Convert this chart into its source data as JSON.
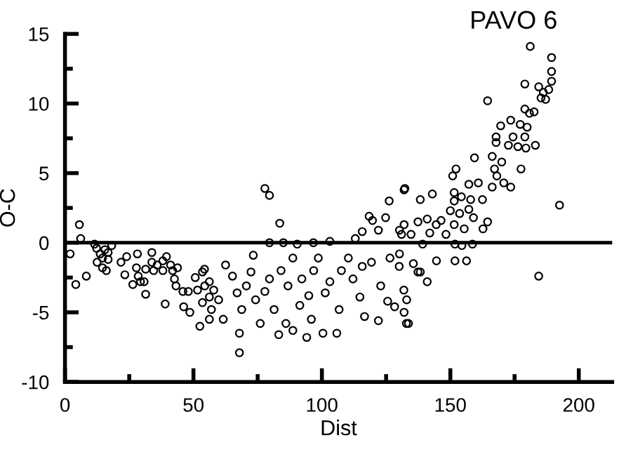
{
  "chart_data": {
    "type": "scatter",
    "title": "PAVO 6",
    "xlabel": "Dist",
    "ylabel": "O-C",
    "grid": false,
    "legend": false,
    "xlim": [
      0,
      213
    ],
    "ylim": [
      -10,
      15
    ],
    "xticks": [
      0,
      {
        "value": 25,
        "label": null
      },
      50,
      {
        "value": 75,
        "label": null
      },
      100,
      {
        "value": 125,
        "label": null
      },
      150,
      {
        "value": 175,
        "label": null
      },
      200
    ],
    "yticks": [
      -10,
      {
        "value": -7.5,
        "label": null
      },
      -5,
      {
        "value": -2.5,
        "label": null
      },
      0,
      {
        "value": 2.5,
        "label": null
      },
      5,
      {
        "value": 7.5,
        "label": null
      },
      10,
      {
        "value": 12.5,
        "label": null
      },
      15
    ],
    "series": [
      {
        "color": "#000000",
        "marker": "circle",
        "x": [
          5.6,
          6.1,
          2,
          4.2,
          8.3,
          11.5,
          12.3,
          13.7,
          14.6,
          12.5,
          15.5,
          16.8,
          18.2,
          14.6,
          16.1,
          16.8,
          21.8,
          24,
          23.3,
          26.4,
          28.2,
          27.8,
          28.5,
          29.4,
          30.8,
          31.4,
          31.4,
          33.8,
          33.8,
          34.5,
          35.9,
          38.1,
          38.1,
          39.5,
          39,
          41.1,
          41.9,
          42.6,
          43.8,
          43.2,
          45.9,
          46.2,
          48,
          48.6,
          50.7,
          51.6,
          52.5,
          53.5,
          53.5,
          54.4,
          56.2,
          56.2,
          77.8,
          79.6,
          83.6,
          79.6,
          85,
          90.4,
          96.7,
          103.1,
          113,
          115.7,
          118.4,
          119.7,
          122,
          124.8,
          126.2,
          132.3,
          131,
          67.9,
          54.3,
          56.2,
          57.9,
          59.8,
          57,
          61.6,
          62.5,
          65.2,
          67,
          68.8,
          67.9,
          70.6,
          72.4,
          74.2,
          76,
          73.3,
          77.8,
          79.6,
          81.4,
          83.2,
          84.1,
          86,
          86.8,
          88.7,
          88.7,
          91.4,
          92.2,
          94.1,
          94.9,
          95.9,
          96.8,
          98.6,
          100.4,
          101.3,
          103.1,
          105.8,
          106.7,
          107.6,
          110.3,
          112.1,
          114.8,
          116.6,
          115.7,
          119.3,
          122,
          122.9,
          125.6,
          126.5,
          128.3,
          130.1,
          131.9,
          132.9,
          181.1,
          189.4,
          189.4,
          189.4,
          184.4,
          186.2,
          188.3,
          185.3,
          187.1,
          179,
          164.5,
          179,
          180.8,
          182.6,
          173.5,
          169.6,
          177.2,
          179.9,
          174.4,
          179,
          167.8,
          167.8,
          172.6,
          176.3,
          179.4,
          183.1,
          159.4,
          166.3,
          170,
          177.5,
          167.2,
          152.2,
          150.9,
          168.1,
          170.8,
          173.5,
          166.3,
          160.9,
          157.2,
          151.5,
          132,
          138.3,
          143,
          151.5,
          154.3,
          157.9,
          162.5,
          192.5,
          150,
          153.6,
          157.2,
          159,
          146.4,
          141,
          137.4,
          144.5,
          151.5,
          164.5,
          162.7,
          155.4,
          132,
          130.2,
          134.7,
          142,
          148.3,
          151.8,
          154.5,
          158.6,
          139.2,
          144.6,
          151.8,
          156.3,
          130.2,
          135.6,
          137.4,
          184.4,
          132,
          133.7,
          133,
          141,
          138.3
        ],
        "values": [
          1.3,
          0.3,
          -0.8,
          -3.0,
          -2.4,
          -0.1,
          -0.4,
          -0.8,
          -1.1,
          -1.4,
          -0.5,
          -0.7,
          -0.2,
          -1.8,
          -2.0,
          -1.2,
          -1.4,
          -1.0,
          -2.3,
          -3.0,
          -0.8,
          -1.8,
          -2.4,
          -2.8,
          -2.8,
          -1.9,
          -3.7,
          -0.7,
          -1.4,
          -2.0,
          -1.6,
          -1.3,
          -2.0,
          -1.0,
          -4.4,
          -1.6,
          -2.0,
          -2.6,
          -1.8,
          -3.1,
          -3.5,
          -4.6,
          -3.5,
          -5.0,
          -2.5,
          -3.4,
          -6.0,
          -2.1,
          -4.3,
          -3.1,
          -5.5,
          -3.9,
          3.9,
          3.4,
          1.4,
          0,
          0,
          -0.1,
          0,
          0.1,
          0.3,
          0.8,
          1.9,
          1.6,
          0.9,
          1.8,
          3.0,
          3.9,
          0.6,
          -7.9,
          -1.9,
          -2.8,
          -3.4,
          -4.1,
          -4.8,
          -5.5,
          -1.6,
          -2.4,
          -3.6,
          -4.8,
          -6.5,
          -3.1,
          -2.1,
          -4.1,
          -5.8,
          -0.9,
          -3.5,
          -2.6,
          -4.8,
          -6.6,
          -2.0,
          -5.8,
          -3.1,
          -1.1,
          -6.3,
          -4.5,
          -2.6,
          -6.8,
          -3.8,
          -5.5,
          -2.0,
          -1.1,
          -6.5,
          -3.6,
          -2.8,
          -6.5,
          -4.8,
          -2.0,
          -1.1,
          -2.6,
          -3.9,
          -5.3,
          -1.7,
          -1.4,
          -5.6,
          -3.1,
          -4.2,
          -1.1,
          -4.6,
          -1.7,
          -3.4,
          -5.8,
          14.1,
          13.3,
          12.3,
          11.6,
          11.2,
          10.8,
          11.0,
          10.4,
          10.3,
          11.4,
          10.2,
          9.6,
          9.3,
          9.4,
          8.8,
          8.4,
          8.5,
          8.3,
          7.6,
          7.6,
          7.6,
          7.2,
          7.0,
          6.9,
          6.8,
          7.0,
          6.1,
          6.2,
          5.8,
          5.3,
          5.3,
          5.3,
          4.8,
          4.8,
          4.3,
          4.0,
          4.0,
          4.3,
          4.2,
          3.6,
          3.8,
          3.1,
          3.5,
          3.0,
          3.3,
          3.1,
          3.1,
          2.7,
          2.3,
          2.1,
          2.4,
          1.8,
          1.6,
          1.7,
          1.5,
          1.3,
          1.3,
          1.5,
          1.0,
          1.0,
          1.3,
          0.9,
          0.6,
          0.7,
          0.6,
          -0.1,
          -0.2,
          -0.1,
          -0.1,
          -1.3,
          -1.3,
          -1.3,
          -0.8,
          -1.5,
          -2.1,
          -2.4,
          -5.0,
          -5.8,
          -4.1,
          -2.8,
          -2.1
        ]
      },
      {
        "type": "line",
        "color": "#000000",
        "x": [
          5,
          213
        ],
        "values": [
          0,
          0
        ]
      }
    ]
  }
}
